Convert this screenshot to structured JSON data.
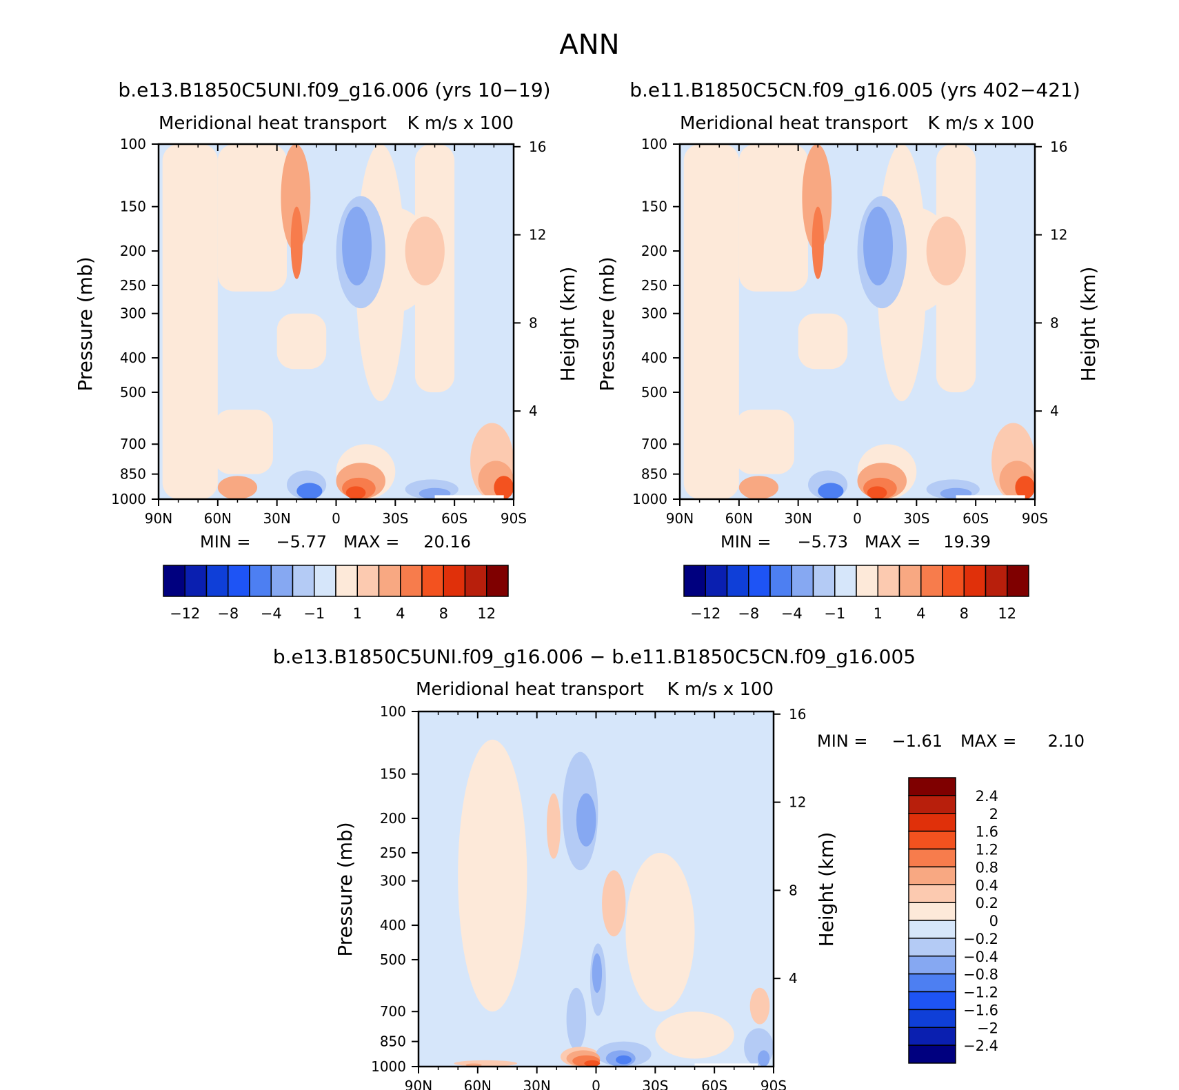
{
  "figure": {
    "title": "ANN"
  },
  "panels": [
    {
      "id": "case",
      "title": "b.e13.B1850C5UNI.f09_g16.006 (yrs 10−19)",
      "left_string": "Meridional heat transport",
      "right_string": "K m/s x 100",
      "y_label": "Pressure (mb)",
      "y2_label": "Height (km)",
      "stats": {
        "min_label": "MIN =",
        "min_value": "−5.77",
        "max_label": "MAX =",
        "max_value": "20.16"
      }
    },
    {
      "id": "control",
      "title": "b.e11.B1850C5CN.f09_g16.005 (yrs 402−421)",
      "left_string": "Meridional heat transport",
      "right_string": "K m/s x 100",
      "y_label": "Pressure (mb)",
      "y2_label": "Height (km)",
      "stats": {
        "min_label": "MIN =",
        "min_value": "−5.73",
        "max_label": "MAX =",
        "max_value": "19.39"
      }
    },
    {
      "id": "diff",
      "title": "b.e13.B1850C5UNI.f09_g16.006 − b.e11.B1850C5CN.f09_g16.005",
      "left_string": "Meridional heat transport",
      "right_string": "K m/s x 100",
      "y_label": "Pressure (mb)",
      "y2_label": "Height (km)",
      "stats": {
        "min_label": "MIN =",
        "min_value": "−1.61",
        "max_label": "MAX =",
        "max_value": "2.10"
      }
    }
  ],
  "chart_data": [
    {
      "type": "heatmap",
      "panel": "case",
      "x_ticks": [
        {
          "v": 90,
          "label": "90N"
        },
        {
          "v": 60,
          "label": "60N"
        },
        {
          "v": 30,
          "label": "30N"
        },
        {
          "v": 0,
          "label": "0"
        },
        {
          "v": -30,
          "label": "30S"
        },
        {
          "v": -60,
          "label": "60S"
        },
        {
          "v": -90,
          "label": "90S"
        }
      ],
      "xlim": [
        90,
        -90
      ],
      "y_ticks": [
        100,
        150,
        200,
        250,
        300,
        400,
        500,
        700,
        850,
        1000
      ],
      "ylim": [
        100,
        1000
      ],
      "y_scale": "log-pressure",
      "y2_ticks": [
        16,
        12,
        8,
        4
      ],
      "levels": [
        -12,
        -10,
        -8,
        -6,
        -4,
        -2,
        -1,
        0,
        1,
        2,
        4,
        6,
        8,
        10,
        12
      ],
      "colorbar_labels": [
        "−12",
        "−8",
        "−4",
        "−1",
        "1",
        "4",
        "8",
        "12"
      ],
      "colors": [
        "#00007f",
        "#0a1fb0",
        "#0f3fd8",
        "#1e54f5",
        "#4d7ff2",
        "#86a8f2",
        "#b4cbf5",
        "#d6e6fa",
        "#fde9d9",
        "#fccab0",
        "#f8a882",
        "#f77c4c",
        "#f3521f",
        "#e0300a",
        "#b81f0c",
        "#7f0000"
      ],
      "features": [
        {
          "lat": [
            -5,
            -50
          ],
          "p": [
            150,
            300
          ],
          "value": 0.5
        },
        {
          "lat": [
            -10,
            -35
          ],
          "p": [
            100,
            530
          ],
          "value": 0.5
        },
        {
          "lat": [
            28,
            13
          ],
          "p": [
            100,
            200
          ],
          "value": 2.5
        },
        {
          "lat": [
            23,
            17
          ],
          "p": [
            150,
            240
          ],
          "value": 5
        },
        {
          "lat": [
            0,
            -25
          ],
          "p": [
            140,
            290
          ],
          "value": -1.5
        },
        {
          "lat": [
            -3,
            -18
          ],
          "p": [
            150,
            250
          ],
          "value": -3
        },
        {
          "lat": [
            -35,
            -55
          ],
          "p": [
            160,
            250
          ],
          "value": 1.5
        },
        {
          "lat": [
            0,
            -30
          ],
          "p": [
            700,
            1000
          ],
          "value": 0.5
        },
        {
          "lat": [
            0,
            -25
          ],
          "p": [
            790,
            1000
          ],
          "value": 2.5
        },
        {
          "lat": [
            -3,
            -20
          ],
          "p": [
            870,
            1000
          ],
          "value": 5
        },
        {
          "lat": [
            -5,
            -15
          ],
          "p": [
            920,
            1000
          ],
          "value": 7
        },
        {
          "lat": [
            25,
            5
          ],
          "p": [
            830,
            1000
          ],
          "value": -1.5
        },
        {
          "lat": [
            20,
            7
          ],
          "p": [
            900,
            1000
          ],
          "value": -5
        },
        {
          "lat": [
            -35,
            -62
          ],
          "p": [
            880,
            1000
          ],
          "value": -1.5
        },
        {
          "lat": [
            -42,
            -58
          ],
          "p": [
            930,
            1000
          ],
          "value": -4
        },
        {
          "lat": [
            60,
            40
          ],
          "p": [
            860,
            1000
          ],
          "value": 2
        },
        {
          "lat": [
            58,
            44
          ],
          "p": [
            920,
            1000
          ],
          "value": 3
        },
        {
          "lat": [
            -68,
            -90
          ],
          "p": [
            610,
            1000
          ],
          "value": 1
        },
        {
          "lat": [
            -72,
            -90
          ],
          "p": [
            780,
            1000
          ],
          "value": 3
        },
        {
          "lat": [
            -80,
            -90
          ],
          "p": [
            860,
            1000
          ],
          "value": 6
        }
      ],
      "mask": {
        "lat": [
          -50,
          -85
        ],
        "p": [
          975,
          1000
        ]
      }
    },
    {
      "type": "heatmap",
      "panel": "control",
      "x_ticks": [
        {
          "v": 90,
          "label": "90N"
        },
        {
          "v": 60,
          "label": "60N"
        },
        {
          "v": 30,
          "label": "30N"
        },
        {
          "v": 0,
          "label": "0"
        },
        {
          "v": -30,
          "label": "30S"
        },
        {
          "v": -60,
          "label": "60S"
        },
        {
          "v": -90,
          "label": "90S"
        }
      ],
      "xlim": [
        90,
        -90
      ],
      "y_ticks": [
        100,
        150,
        200,
        250,
        300,
        400,
        500,
        700,
        850,
        1000
      ],
      "ylim": [
        100,
        1000
      ],
      "y_scale": "log-pressure",
      "y2_ticks": [
        16,
        12,
        8,
        4
      ],
      "levels": [
        -12,
        -10,
        -8,
        -6,
        -4,
        -2,
        -1,
        0,
        1,
        2,
        4,
        6,
        8,
        10,
        12
      ],
      "colorbar_labels": [
        "−12",
        "−8",
        "−4",
        "−1",
        "1",
        "4",
        "8",
        "12"
      ],
      "colors": [
        "#00007f",
        "#0a1fb0",
        "#0f3fd8",
        "#1e54f5",
        "#4d7ff2",
        "#86a8f2",
        "#b4cbf5",
        "#d6e6fa",
        "#fde9d9",
        "#fccab0",
        "#f8a882",
        "#f77c4c",
        "#f3521f",
        "#e0300a",
        "#b81f0c",
        "#7f0000"
      ],
      "features": [
        {
          "lat": [
            -5,
            -50
          ],
          "p": [
            150,
            300
          ],
          "value": 0.5
        },
        {
          "lat": [
            -10,
            -35
          ],
          "p": [
            100,
            530
          ],
          "value": 0.5
        },
        {
          "lat": [
            28,
            13
          ],
          "p": [
            100,
            200
          ],
          "value": 2.5
        },
        {
          "lat": [
            23,
            17
          ],
          "p": [
            150,
            240
          ],
          "value": 5
        },
        {
          "lat": [
            0,
            -25
          ],
          "p": [
            140,
            290
          ],
          "value": -1.5
        },
        {
          "lat": [
            -3,
            -18
          ],
          "p": [
            150,
            250
          ],
          "value": -3
        },
        {
          "lat": [
            -35,
            -55
          ],
          "p": [
            160,
            250
          ],
          "value": 1.5
        },
        {
          "lat": [
            0,
            -30
          ],
          "p": [
            700,
            1000
          ],
          "value": 0.5
        },
        {
          "lat": [
            0,
            -25
          ],
          "p": [
            790,
            1000
          ],
          "value": 2.5
        },
        {
          "lat": [
            -3,
            -20
          ],
          "p": [
            870,
            1000
          ],
          "value": 5
        },
        {
          "lat": [
            -5,
            -15
          ],
          "p": [
            920,
            1000
          ],
          "value": 7
        },
        {
          "lat": [
            25,
            5
          ],
          "p": [
            830,
            1000
          ],
          "value": -1.5
        },
        {
          "lat": [
            20,
            7
          ],
          "p": [
            900,
            1000
          ],
          "value": -5
        },
        {
          "lat": [
            -35,
            -62
          ],
          "p": [
            880,
            1000
          ],
          "value": -1.5
        },
        {
          "lat": [
            -42,
            -58
          ],
          "p": [
            930,
            1000
          ],
          "value": -4
        },
        {
          "lat": [
            60,
            40
          ],
          "p": [
            860,
            1000
          ],
          "value": 2
        },
        {
          "lat": [
            58,
            44
          ],
          "p": [
            920,
            1000
          ],
          "value": 3
        },
        {
          "lat": [
            -68,
            -90
          ],
          "p": [
            610,
            1000
          ],
          "value": 1
        },
        {
          "lat": [
            -72,
            -90
          ],
          "p": [
            780,
            1000
          ],
          "value": 3
        },
        {
          "lat": [
            -80,
            -90
          ],
          "p": [
            860,
            1000
          ],
          "value": 6
        }
      ],
      "mask": {
        "lat": [
          -50,
          -85
        ],
        "p": [
          975,
          1000
        ]
      }
    },
    {
      "type": "heatmap",
      "panel": "diff",
      "x_ticks": [
        {
          "v": 90,
          "label": "90N"
        },
        {
          "v": 60,
          "label": "60N"
        },
        {
          "v": 30,
          "label": "30N"
        },
        {
          "v": 0,
          "label": "0"
        },
        {
          "v": -30,
          "label": "30S"
        },
        {
          "v": -60,
          "label": "60S"
        },
        {
          "v": -90,
          "label": "90S"
        }
      ],
      "xlim": [
        90,
        -90
      ],
      "y_ticks": [
        100,
        150,
        200,
        250,
        300,
        400,
        500,
        700,
        850,
        1000
      ],
      "ylim": [
        100,
        1000
      ],
      "y_scale": "log-pressure",
      "y2_ticks": [
        16,
        12,
        8,
        4
      ],
      "levels": [
        -2.4,
        -2,
        -1.6,
        -1.2,
        -0.8,
        -0.4,
        -0.2,
        0,
        0.2,
        0.4,
        0.8,
        1.2,
        1.6,
        2,
        2.4
      ],
      "colorbar_labels": [
        "2.4",
        "2",
        "1.6",
        "1.2",
        "0.8",
        "0.4",
        "0.2",
        "0",
        "−0.2",
        "−0.4",
        "−0.8",
        "−1.2",
        "−1.6",
        "−2",
        "−2.4"
      ],
      "colors": [
        "#00007f",
        "#0a1fb0",
        "#0f3fd8",
        "#1e54f5",
        "#4d7ff2",
        "#86a8f2",
        "#b4cbf5",
        "#d6e6fa",
        "#fde9d9",
        "#fccab0",
        "#f8a882",
        "#f77c4c",
        "#f3521f",
        "#e0300a",
        "#b81f0c",
        "#7f0000"
      ],
      "features": [
        {
          "lat": [
            70,
            35
          ],
          "p": [
            120,
            700
          ],
          "value": 0.1
        },
        {
          "lat": [
            -15,
            -50
          ],
          "p": [
            250,
            700
          ],
          "value": 0.1
        },
        {
          "lat": [
            -30,
            -70
          ],
          "p": [
            700,
            950
          ],
          "value": 0.1
        },
        {
          "lat": [
            17,
            -1
          ],
          "p": [
            130,
            280
          ],
          "value": -0.3
        },
        {
          "lat": [
            10,
            0
          ],
          "p": [
            170,
            240
          ],
          "value": -0.6
        },
        {
          "lat": [
            25,
            18
          ],
          "p": [
            170,
            260
          ],
          "value": 0.3
        },
        {
          "lat": [
            -3,
            -15
          ],
          "p": [
            280,
            430
          ],
          "value": 0.3
        },
        {
          "lat": [
            3,
            -5
          ],
          "p": [
            450,
            720
          ],
          "value": -0.3
        },
        {
          "lat": [
            2,
            -3
          ],
          "p": [
            480,
            620
          ],
          "value": -0.6
        },
        {
          "lat": [
            15,
            5
          ],
          "p": [
            600,
            900
          ],
          "value": -0.3
        },
        {
          "lat": [
            18,
            -2
          ],
          "p": [
            880,
            1000
          ],
          "value": 0.3
        },
        {
          "lat": [
            15,
            -2
          ],
          "p": [
            900,
            1000
          ],
          "value": 0.6
        },
        {
          "lat": [
            12,
            -2
          ],
          "p": [
            930,
            1000
          ],
          "value": 1
        },
        {
          "lat": [
            6,
            -2
          ],
          "p": [
            960,
            1000
          ],
          "value": 1.4
        },
        {
          "lat": [
            0,
            -28
          ],
          "p": [
            850,
            1000
          ],
          "value": -0.3
        },
        {
          "lat": [
            -5,
            -20
          ],
          "p": [
            900,
            1000
          ],
          "value": -0.6
        },
        {
          "lat": [
            -10,
            -18
          ],
          "p": [
            930,
            985
          ],
          "value": -1
        },
        {
          "lat": [
            72,
            40
          ],
          "p": [
            960,
            1000
          ],
          "value": 0.3
        },
        {
          "lat": [
            66,
            58
          ],
          "p": [
            980,
            1000
          ],
          "value": 0.6
        },
        {
          "lat": [
            -75,
            -90
          ],
          "p": [
            780,
            1000
          ],
          "value": -0.3
        },
        {
          "lat": [
            -82,
            -88
          ],
          "p": [
            900,
            1000
          ],
          "value": -0.6
        },
        {
          "lat": [
            -78,
            -88
          ],
          "p": [
            600,
            760
          ],
          "value": 0.3
        }
      ],
      "mask": {
        "lat": [
          -50,
          -82
        ],
        "p": [
          980,
          1000
        ]
      }
    }
  ]
}
